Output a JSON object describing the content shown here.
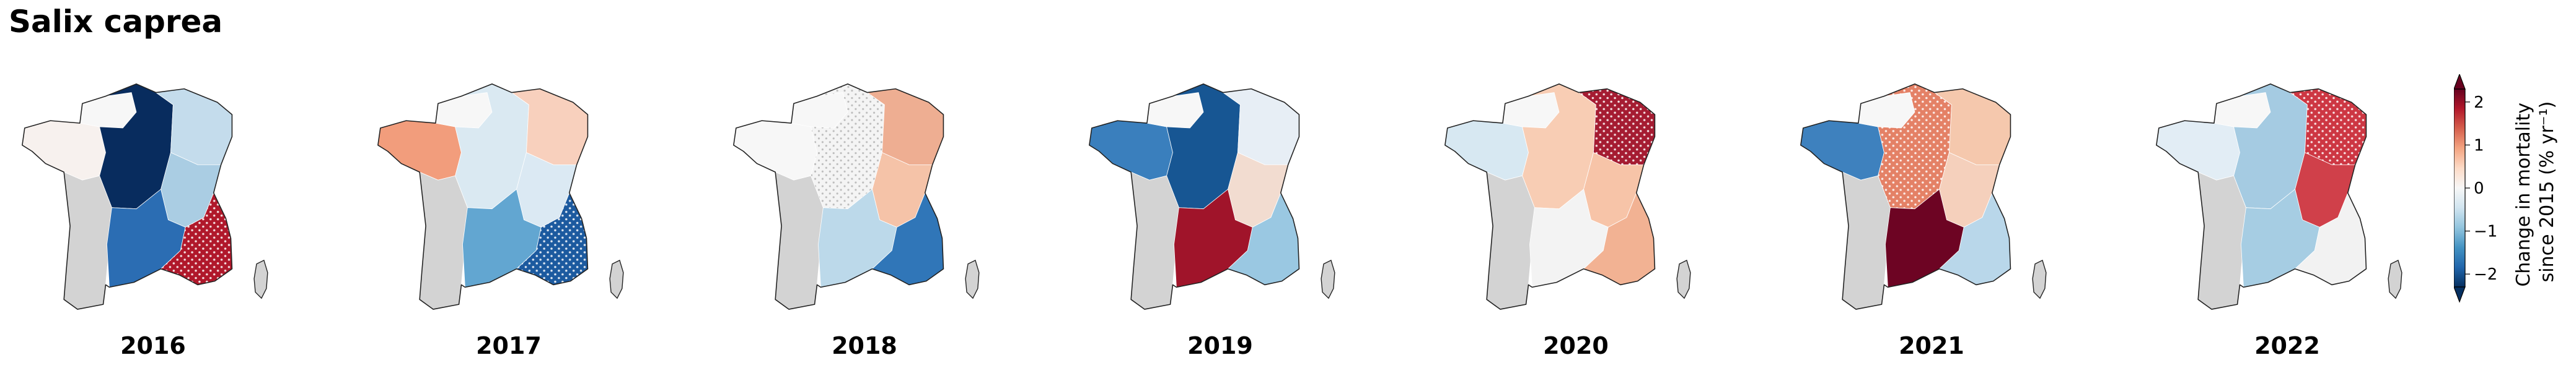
{
  "figure": {
    "title": "Salix caprea"
  },
  "colorbar": {
    "label_line1": "Change in mortality",
    "label_line2": "since 2015 (% yr⁻¹)",
    "ticks": [
      2,
      1,
      0,
      -1,
      -2
    ],
    "tick_labels": [
      "2",
      "1",
      "0",
      "−1",
      "−2"
    ],
    "range": [
      -2.3,
      2.3
    ],
    "extend": "both",
    "colormap": "RdBu_r",
    "colors": [
      "#053061",
      "#2166ac",
      "#4393c3",
      "#92c5de",
      "#d1e5f0",
      "#f7f7f7",
      "#fddbc7",
      "#f4a582",
      "#d6604d",
      "#b2182b",
      "#67001f"
    ]
  },
  "no_data_color": "#d3d3d3",
  "panels": [
    {
      "year": "2016",
      "regions": {
        "west": "#f7f1ee",
        "northwest": "#f7f7f7",
        "center": "#082c5e",
        "northeast": "#c4dcec",
        "east": "#aacde3",
        "southwest": "#d3d3d3",
        "southcentral": "#2b6db3",
        "alps": "#b0182b"
      },
      "hatched": [
        "alps"
      ]
    },
    {
      "year": "2017",
      "regions": {
        "west": "#f29d7c",
        "northwest": "#f7f7f7",
        "center": "#dae9f2",
        "northeast": "#f8d0bd",
        "east": "#dbe9f3",
        "southwest": "#d3d3d3",
        "southcentral": "#62a6d1",
        "alps": "#1c5a9f"
      },
      "hatched": [
        "alps"
      ]
    },
    {
      "year": "2018",
      "regions": {
        "west": "#f7f7f7",
        "northwest": "#f7f7f7",
        "center": "#f4f4f4",
        "northeast": "#eeae92",
        "east": "#f5c3a8",
        "southwest": "#d3d3d3",
        "southcentral": "#bcd9ea",
        "alps": "#3076b8"
      },
      "hatched": [
        "center"
      ]
    },
    {
      "year": "2019",
      "regions": {
        "west": "#3a7fbd",
        "northwest": "#f7f7f7",
        "center": "#175693",
        "northeast": "#e7eef5",
        "east": "#f2dcd0",
        "southwest": "#d3d3d3",
        "southcentral": "#a0142a",
        "alps": "#9ac8e2"
      },
      "hatched": []
    },
    {
      "year": "2020",
      "regions": {
        "west": "#d7e8f2",
        "northwest": "#f7f7f7",
        "center": "#f8cdb4",
        "northeast": "#a51c32",
        "east": "#f7c4a8",
        "southwest": "#d3d3d3",
        "southcentral": "#f3f3f3",
        "alps": "#f2b293"
      },
      "hatched": [
        "northeast"
      ]
    },
    {
      "year": "2021",
      "regions": {
        "west": "#3e81be",
        "northwest": "#f7f7f7",
        "center": "#e48166",
        "northeast": "#f5c8ad",
        "east": "#f5d0bc",
        "southwest": "#d3d3d3",
        "southcentral": "#6d0423",
        "alps": "#b9d7ea"
      },
      "hatched": [
        "center"
      ]
    },
    {
      "year": "2022",
      "regions": {
        "west": "#e2edf5",
        "northwest": "#f7f7f7",
        "center": "#a5cbe2",
        "northeast": "#cd3743",
        "east": "#d0404a",
        "southwest": "#d3d3d3",
        "southcentral": "#a6cde3",
        "alps": "#f2f2f2"
      },
      "hatched": [
        "northeast"
      ]
    }
  ]
}
